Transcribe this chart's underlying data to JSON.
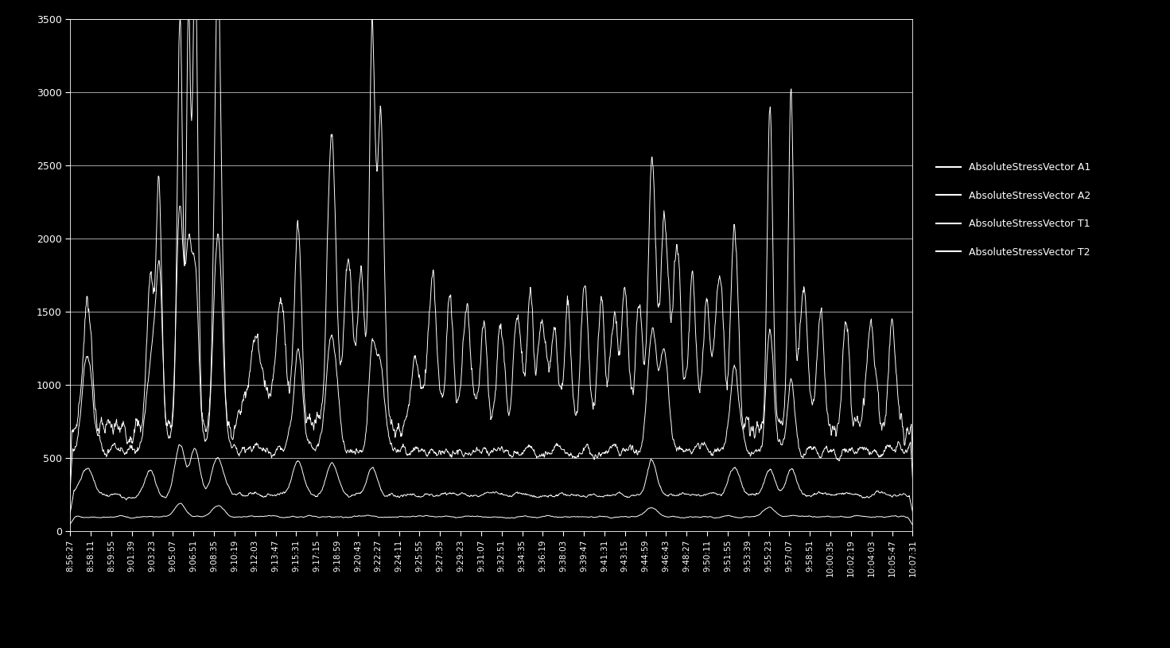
{
  "background_color": "#000000",
  "text_color": "#ffffff",
  "grid_color": "#ffffff",
  "ylim": [
    0,
    3500
  ],
  "yticks": [
    0,
    500,
    1000,
    1500,
    2000,
    2500,
    3000,
    3500
  ],
  "legend_labels": [
    "AbsoluteStressVector A1",
    "AbsoluteStressVector A2",
    "AbsoluteStressVector T1",
    "AbsoluteStressVector T2"
  ],
  "line_color": "#ffffff",
  "n_points": 2000,
  "seed": 7,
  "x_tick_labels": [
    "8:56:27",
    "8:58:11",
    "8:59:55",
    "9:01:39",
    "9:03:23",
    "9:05:07",
    "9:06:51",
    "9:08:35",
    "9:10:19",
    "9:12:03",
    "9:13:47",
    "9:15:31",
    "9:17:15",
    "9:18:59",
    "9:20:43",
    "9:22:27",
    "9:24:11",
    "9:25:55",
    "9:27:39",
    "9:29:23",
    "9:31:07",
    "9:32:51",
    "9:34:35",
    "9:36:19",
    "9:38:03",
    "9:39:47",
    "9:41:31",
    "9:43:15",
    "9:44:59",
    "9:46:43",
    "9:48:27",
    "9:50:11",
    "9:51:55",
    "9:53:39",
    "9:55:23",
    "9:57:07",
    "9:58:51",
    "10:00:35",
    "10:02:19",
    "10:04:03",
    "10:05:47",
    "10:07:31"
  ],
  "figsize": [
    14.71,
    8.15
  ],
  "dpi": 100
}
